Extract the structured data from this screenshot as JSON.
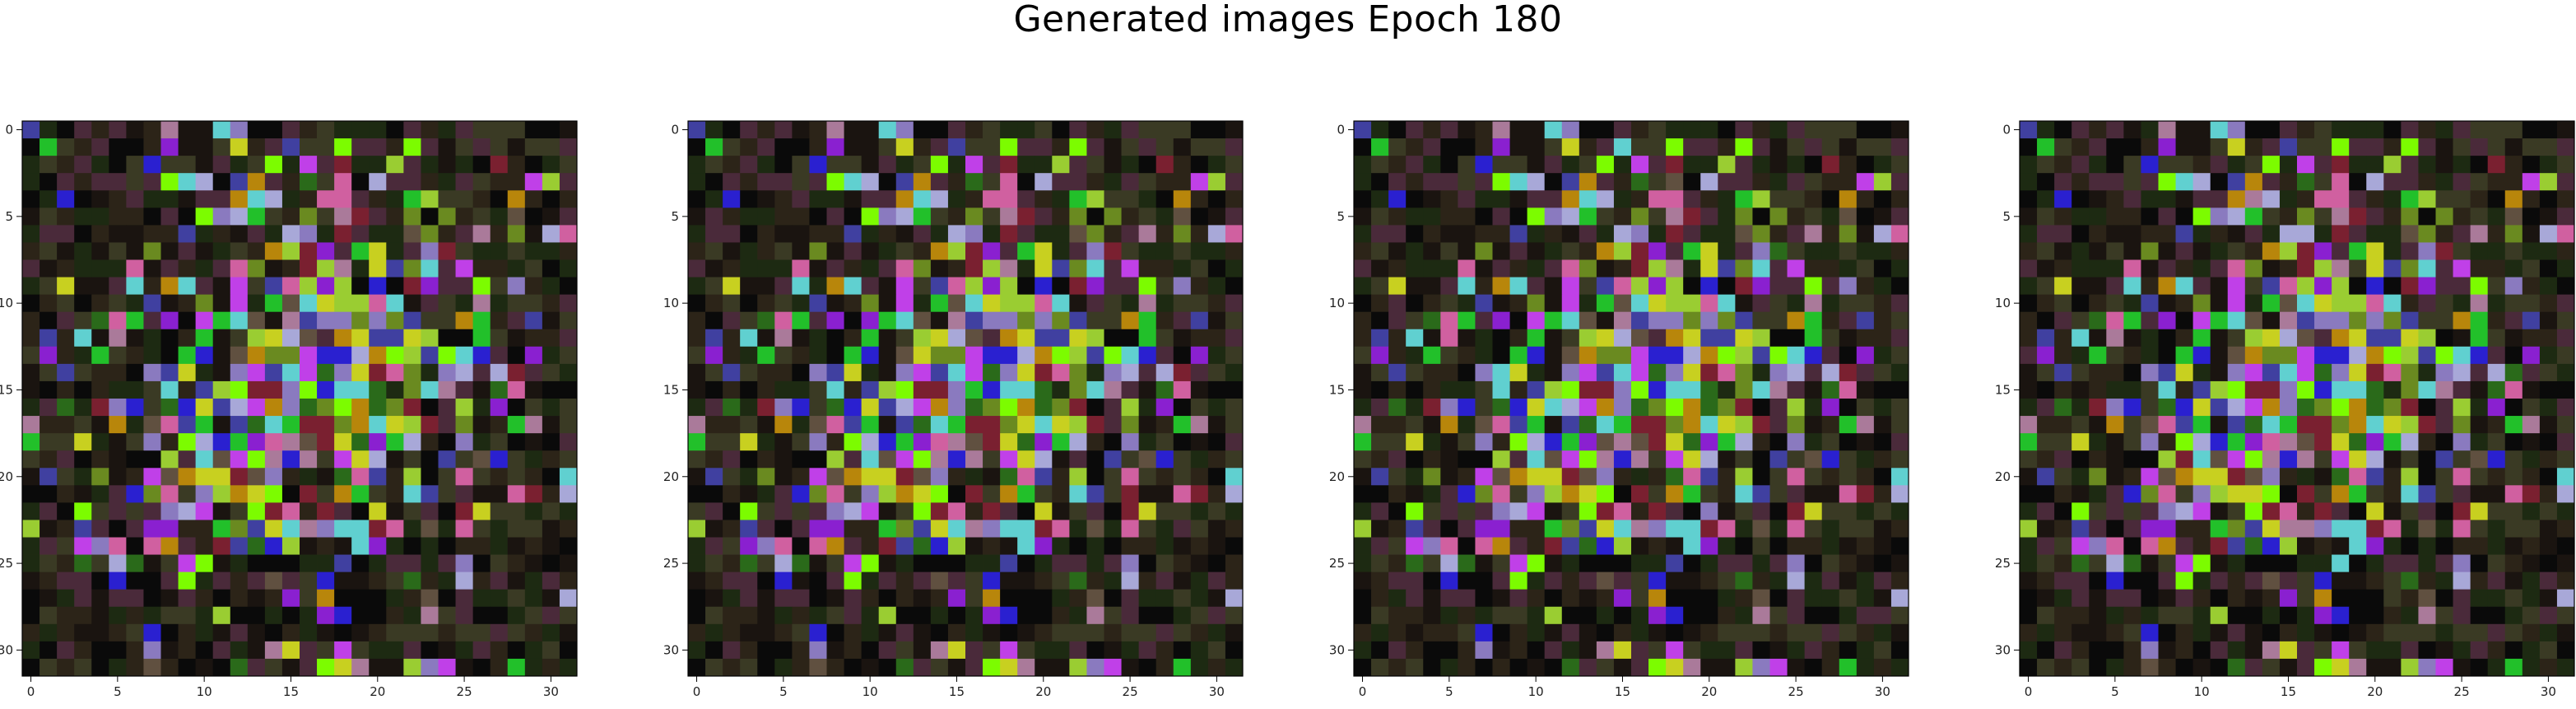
{
  "title": "Generated images Epoch 180",
  "chart_data": {
    "type": "heatmap",
    "title": "Generated images Epoch 180",
    "panel_count": 4,
    "image_shape": [
      32,
      32,
      3
    ],
    "xlim": [
      -0.5,
      31.5
    ],
    "ylim": [
      31.5,
      -0.5
    ],
    "xticks": [
      0,
      5,
      10,
      15,
      20,
      25,
      30
    ],
    "yticks": [
      0,
      5,
      10,
      15,
      20,
      25,
      30
    ],
    "xtick_labels": [
      "0",
      "5",
      "10",
      "15",
      "20",
      "25",
      "30"
    ],
    "ytick_labels": [
      "0",
      "5",
      "10",
      "15",
      "20",
      "25",
      "30"
    ],
    "palette": [
      "#0a0a0a",
      "#1a1410",
      "#2c2418",
      "#1d2a12",
      "#3a3a24",
      "#4a2a3a",
      "#7a2030",
      "#2a6a1a",
      "#6a8a20",
      "#9acd32",
      "#7cfc00",
      "#22c02a",
      "#b8860b",
      "#c8d020",
      "#8a7abf",
      "#a8a8d8",
      "#c040e8",
      "#8a20d0",
      "#2a20d0",
      "#4040a0",
      "#60d0d0",
      "#aa7a9a",
      "#d060a0",
      "#605040"
    ],
    "colors_note": "pixel noise on dark background, bright center cluster"
  }
}
